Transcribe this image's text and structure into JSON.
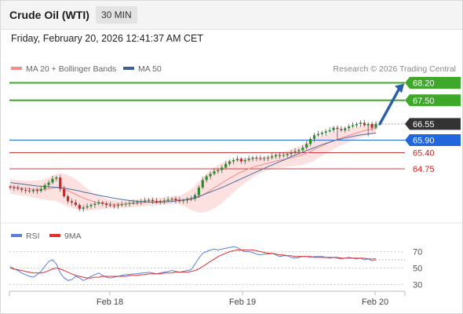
{
  "header": {
    "title": "Crude Oil (WTI)",
    "interval": "30 MIN"
  },
  "datetime": "Friday, February 20, 2026 12:41:37 AM CET",
  "legend": {
    "ma20": "MA 20 + Bollinger Bands",
    "ma50": "MA 50",
    "credit": "Research © 2026 Trading Central"
  },
  "rsi_legend": {
    "rsi": "RSI",
    "ma9": "9MA"
  },
  "colors": {
    "resistance": "#3ea82a",
    "current": "#333333",
    "pivot": "#2266dd",
    "support": "#cc2222",
    "bollinger": "#fde0e0",
    "ma20": "#f28b8b",
    "ma50": "#4a6fa5",
    "candle_up": "#2a8f2a",
    "candle_down": "#c12a2a",
    "arrow": "#2d5fa8",
    "rsi": "#5a7fd6",
    "rsi_ma": "#e03030"
  },
  "chart_data": [
    {
      "type": "candlestick",
      "title": "Crude Oil (WTI)",
      "x_labels": [
        "Feb 18",
        "Feb 19",
        "Feb 20"
      ],
      "ylim": [
        62.8,
        68.5
      ],
      "levels": [
        {
          "value": 68.2,
          "label": "68.20",
          "role": "resistance"
        },
        {
          "value": 67.5,
          "label": "67.50",
          "role": "resistance"
        },
        {
          "value": 66.55,
          "label": "66.55",
          "role": "current"
        },
        {
          "value": 65.9,
          "label": "65.90",
          "role": "pivot"
        },
        {
          "value": 65.4,
          "label": "65.40",
          "role": "support"
        },
        {
          "value": 64.75,
          "label": "64.75",
          "role": "support"
        }
      ],
      "close": [
        64.0,
        63.98,
        63.95,
        63.9,
        63.88,
        63.85,
        63.9,
        63.86,
        63.95,
        64.1,
        64.2,
        64.35,
        64.4,
        63.95,
        63.65,
        63.45,
        63.4,
        63.3,
        63.15,
        63.2,
        63.25,
        63.3,
        63.35,
        63.4,
        63.35,
        63.3,
        63.28,
        63.26,
        63.3,
        63.32,
        63.35,
        63.38,
        63.4,
        63.42,
        63.45,
        63.48,
        63.5,
        63.46,
        63.42,
        63.45,
        63.48,
        63.52,
        63.55,
        63.5,
        63.45,
        63.48,
        63.52,
        63.55,
        63.7,
        64.0,
        64.3,
        64.45,
        64.55,
        64.65,
        64.7,
        64.8,
        64.95,
        65.05,
        65.1,
        65.15,
        65.05,
        65.1,
        65.15,
        65.2,
        65.18,
        65.15,
        65.18,
        65.2,
        65.25,
        65.3,
        65.28,
        65.3,
        65.35,
        65.4,
        65.45,
        65.5,
        65.6,
        65.75,
        65.95,
        66.1,
        66.15,
        66.2,
        66.25,
        66.3,
        66.4,
        66.35,
        66.3,
        66.38,
        66.45,
        66.5,
        66.55,
        66.6,
        66.5,
        66.55,
        66.4,
        66.55
      ],
      "ma20": [
        64.05,
        64.02,
        64.0,
        63.98,
        63.97,
        63.95,
        63.93,
        63.92,
        63.92,
        63.93,
        63.95,
        63.98,
        64.0,
        63.98,
        63.93,
        63.87,
        63.8,
        63.73,
        63.65,
        63.58,
        63.52,
        63.47,
        63.43,
        63.4,
        63.37,
        63.35,
        63.34,
        63.33,
        63.33,
        63.33,
        63.34,
        63.35,
        63.36,
        63.37,
        63.39,
        63.4,
        63.42,
        63.43,
        63.44,
        63.45,
        63.46,
        63.47,
        63.49,
        63.5,
        63.5,
        63.5,
        63.51,
        63.52,
        63.56,
        63.62,
        63.7,
        63.79,
        63.89,
        63.99,
        64.08,
        64.18,
        64.28,
        64.37,
        64.46,
        64.55,
        64.62,
        64.69,
        64.75,
        64.81,
        64.86,
        64.9,
        64.94,
        64.98,
        65.02,
        65.06,
        65.09,
        65.12,
        65.16,
        65.19,
        65.23,
        65.27,
        65.32,
        65.38,
        65.45,
        65.52,
        65.6,
        65.67,
        65.74,
        65.81,
        65.88,
        65.94,
        65.99,
        66.04,
        66.09,
        66.14,
        66.19,
        66.24,
        66.28,
        66.32,
        66.35,
        66.38
      ],
      "ma50": [
        64.2,
        64.18,
        64.16,
        64.14,
        64.12,
        64.1,
        64.08,
        64.06,
        64.05,
        64.04,
        64.03,
        64.02,
        64.01,
        64.0,
        63.98,
        63.95,
        63.92,
        63.89,
        63.86,
        63.82,
        63.79,
        63.76,
        63.72,
        63.69,
        63.66,
        63.63,
        63.6,
        63.57,
        63.55,
        63.52,
        63.5,
        63.48,
        63.46,
        63.45,
        63.44,
        63.43,
        63.42,
        63.41,
        63.41,
        63.41,
        63.42,
        63.43,
        63.44,
        63.46,
        63.48,
        63.5,
        63.53,
        63.56,
        63.6,
        63.65,
        63.7,
        63.76,
        63.82,
        63.88,
        63.94,
        64.0,
        64.07,
        64.14,
        64.21,
        64.28,
        64.35,
        64.42,
        64.49,
        64.56,
        64.63,
        64.7,
        64.77,
        64.84,
        64.9,
        64.97,
        65.04,
        65.1,
        65.17,
        65.24,
        65.3,
        65.36,
        65.42,
        65.48,
        65.54,
        65.6,
        65.66,
        65.72,
        65.77,
        65.82,
        65.87,
        65.91,
        65.95,
        65.99,
        66.02,
        66.05,
        66.08,
        66.11,
        66.13,
        66.15,
        66.17,
        66.19
      ],
      "bollinger_width": [
        0.3,
        0.3,
        0.3,
        0.3,
        0.3,
        0.32,
        0.34,
        0.36,
        0.38,
        0.42,
        0.46,
        0.5,
        0.55,
        0.6,
        0.62,
        0.63,
        0.62,
        0.6,
        0.56,
        0.5,
        0.44,
        0.38,
        0.32,
        0.28,
        0.24,
        0.2,
        0.18,
        0.16,
        0.15,
        0.15,
        0.15,
        0.15,
        0.15,
        0.15,
        0.15,
        0.15,
        0.15,
        0.15,
        0.15,
        0.15,
        0.15,
        0.15,
        0.15,
        0.16,
        0.18,
        0.24,
        0.32,
        0.42,
        0.52,
        0.62,
        0.7,
        0.76,
        0.8,
        0.82,
        0.82,
        0.8,
        0.76,
        0.72,
        0.66,
        0.6,
        0.55,
        0.5,
        0.45,
        0.4,
        0.36,
        0.32,
        0.3,
        0.28,
        0.28,
        0.28,
        0.3,
        0.3,
        0.32,
        0.34,
        0.36,
        0.38,
        0.4,
        0.42,
        0.44,
        0.44,
        0.42,
        0.4,
        0.38,
        0.36,
        0.34,
        0.32,
        0.3,
        0.28,
        0.26,
        0.25,
        0.24,
        0.23,
        0.22,
        0.22,
        0.22,
        0.22
      ],
      "forecast_arrow": {
        "from": 66.55,
        "to": 68.2
      }
    },
    {
      "type": "line",
      "title": "RSI",
      "ylim": [
        20,
        80
      ],
      "y_ticks": [
        70,
        50,
        30
      ],
      "series": [
        {
          "name": "RSI",
          "values": [
            52,
            49,
            47,
            44,
            42,
            40,
            39,
            42,
            46,
            52,
            58,
            60,
            55,
            44,
            38,
            35,
            36,
            40,
            38,
            35,
            37,
            40,
            42,
            44,
            41,
            39,
            38,
            39,
            40,
            41,
            42,
            42,
            43,
            43,
            44,
            44,
            45,
            44,
            43,
            44,
            45,
            46,
            47,
            46,
            45,
            46,
            47,
            48,
            55,
            62,
            68,
            70,
            72,
            73,
            72,
            73,
            74,
            75,
            76,
            75,
            72,
            70,
            70,
            69,
            67,
            66,
            67,
            67,
            68,
            66,
            64,
            65,
            65,
            63,
            62,
            63,
            64,
            64,
            63,
            64,
            64,
            64,
            63,
            62,
            63,
            62,
            61,
            62,
            63,
            62,
            61,
            62,
            60,
            61,
            59,
            60
          ]
        },
        {
          "name": "9MA",
          "values": [
            50,
            49,
            48,
            47,
            46,
            45,
            44,
            44,
            44,
            45,
            47,
            49,
            50,
            49,
            47,
            45,
            43,
            41,
            40,
            39,
            38,
            38,
            39,
            39,
            40,
            40,
            40,
            40,
            40,
            40,
            40,
            41,
            41,
            41,
            42,
            42,
            43,
            43,
            43,
            43,
            44,
            44,
            44,
            45,
            45,
            45,
            45,
            46,
            47,
            49,
            52,
            55,
            58,
            61,
            64,
            66,
            68,
            70,
            71,
            72,
            72,
            72,
            72,
            72,
            71,
            70,
            69,
            68,
            68,
            67,
            66,
            66,
            65,
            65,
            64,
            64,
            64,
            64,
            64,
            63,
            63,
            63,
            63,
            63,
            63,
            63,
            62,
            62,
            62,
            62,
            62,
            62,
            62,
            61,
            61,
            61
          ]
        }
      ]
    }
  ]
}
